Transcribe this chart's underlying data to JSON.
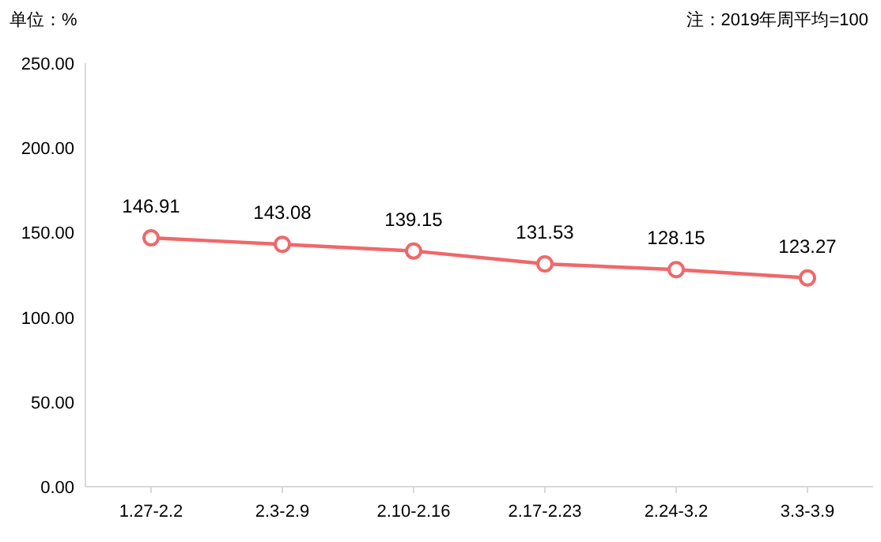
{
  "chart_data": {
    "type": "line",
    "ylabel": "单位：%",
    "annotations": [
      "注：2019年周平均=100"
    ],
    "categories": [
      "1.27-2.2",
      "2.3-2.9",
      "2.10-2.16",
      "2.17-2.23",
      "2.24-3.2",
      "3.3-3.9"
    ],
    "series": [
      {
        "color": "#f0686a",
        "values": [
          146.91,
          143.08,
          139.15,
          131.53,
          128.15,
          123.27
        ]
      }
    ],
    "ylim": [
      0,
      250
    ],
    "yticks": [
      {
        "value": 0,
        "label": "0.00"
      },
      {
        "value": 50,
        "label": "50.00"
      },
      {
        "value": 100,
        "label": "100.00"
      },
      {
        "value": 150,
        "label": "150.00"
      },
      {
        "value": 200,
        "label": "200.00"
      },
      {
        "value": 250,
        "label": "250.00"
      }
    ],
    "grid": false,
    "marker": "circle",
    "line_style": "solid",
    "data_labels": true
  }
}
